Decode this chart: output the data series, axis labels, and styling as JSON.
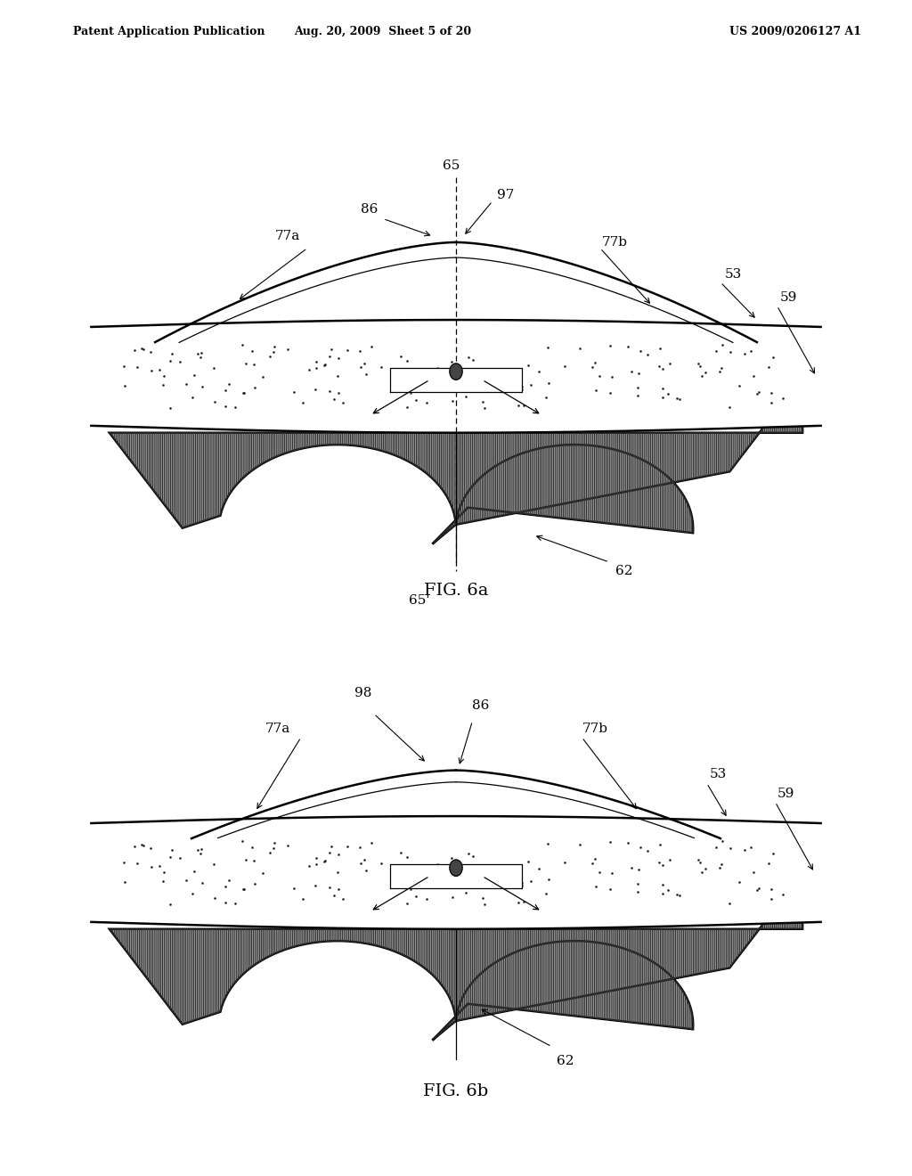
{
  "header_left": "Patent Application Publication",
  "header_mid": "Aug. 20, 2009  Sheet 5 of 20",
  "header_right": "US 2009/0206127 A1",
  "fig1_label": "FIG. 6a",
  "fig2_label": "FIG. 6b",
  "bg_color": "#ffffff",
  "line_color": "#000000"
}
